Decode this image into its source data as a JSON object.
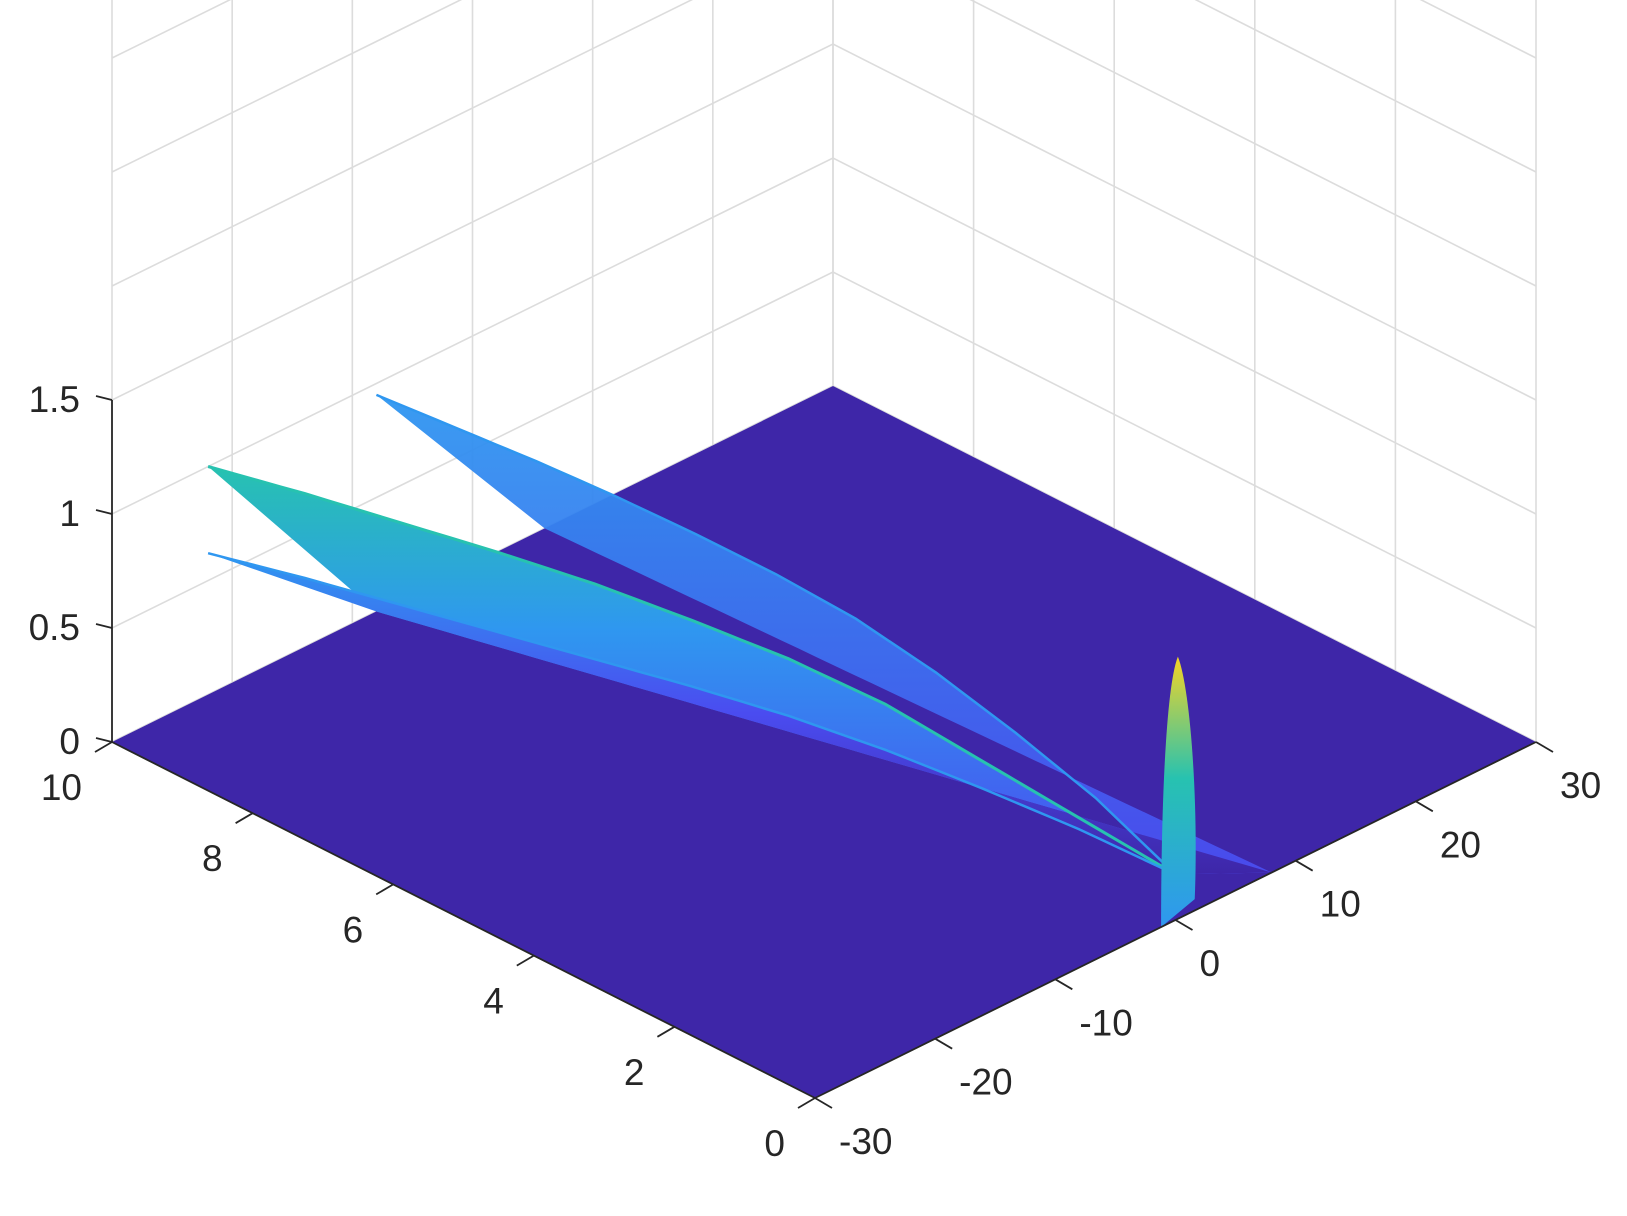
{
  "chart_data": {
    "type": "surface",
    "title": "",
    "xlabel": "",
    "ylabel": "",
    "zlabel": "",
    "x_axis": {
      "range": [
        -30,
        30
      ],
      "ticks": [
        -30,
        -20,
        -10,
        0,
        10,
        20,
        30
      ],
      "tick_labels": [
        "-30",
        "-20",
        "-10",
        "0",
        "10",
        "20",
        "30"
      ]
    },
    "t_axis": {
      "range": [
        0,
        10
      ],
      "ticks": [
        0,
        2,
        4,
        6,
        8,
        10
      ],
      "tick_labels": [
        "0",
        "2",
        "4",
        "6",
        "8",
        "10"
      ]
    },
    "z_axis": {
      "range": [
        0,
        1.5
      ],
      "ticks": [
        0,
        0.5,
        1,
        1.5
      ],
      "tick_labels": [
        "0",
        "0.5",
        "1",
        "1.5"
      ]
    },
    "grid": true,
    "colormap": "parula",
    "colors": {
      "floor": "#3e26a8",
      "low": "#4a4cf0",
      "mid": "#2f97f0",
      "high_mid": "#27c2b0",
      "peak": "#f5d425"
    },
    "features": [
      {
        "name": "initial pulse",
        "x_center": 0,
        "t": 0,
        "peak_height": 1.15
      },
      {
        "name": "outer moving front",
        "x_start": 0,
        "x_end": -22,
        "t_range": [
          0,
          10
        ],
        "height_at_t10": 0.62
      },
      {
        "name": "middle moving front",
        "x_start": 0,
        "x_end": -22,
        "t_range": [
          0,
          10
        ],
        "height_at_t10": 1.0
      },
      {
        "name": "inner moving front",
        "x_start": 0,
        "x_end": -8,
        "t_range": [
          0,
          10
        ],
        "height_at_t10": 0.95
      }
    ],
    "surface_samples": {
      "t": [
        0,
        1,
        2,
        3,
        4,
        5,
        6,
        7,
        8,
        9,
        10
      ],
      "outer_front_x": [
        0,
        -2.2,
        -4.4,
        -6.6,
        -8.8,
        -11,
        -13.2,
        -15.4,
        -17.6,
        -19.8,
        -22
      ],
      "outer_front_height": [
        0.2,
        0.3,
        0.38,
        0.45,
        0.5,
        0.53,
        0.55,
        0.57,
        0.59,
        0.61,
        0.62
      ],
      "middle_front_height": [
        0.2,
        0.35,
        0.5,
        0.65,
        0.75,
        0.82,
        0.88,
        0.92,
        0.95,
        0.98,
        1.0
      ],
      "inner_front_x": [
        0,
        -0.8,
        -1.6,
        -2.4,
        -3.2,
        -4,
        -4.8,
        -5.6,
        -6.4,
        -7.2,
        -8
      ],
      "inner_front_height": [
        0.2,
        0.4,
        0.55,
        0.68,
        0.78,
        0.84,
        0.88,
        0.91,
        0.93,
        0.94,
        0.95
      ]
    }
  }
}
